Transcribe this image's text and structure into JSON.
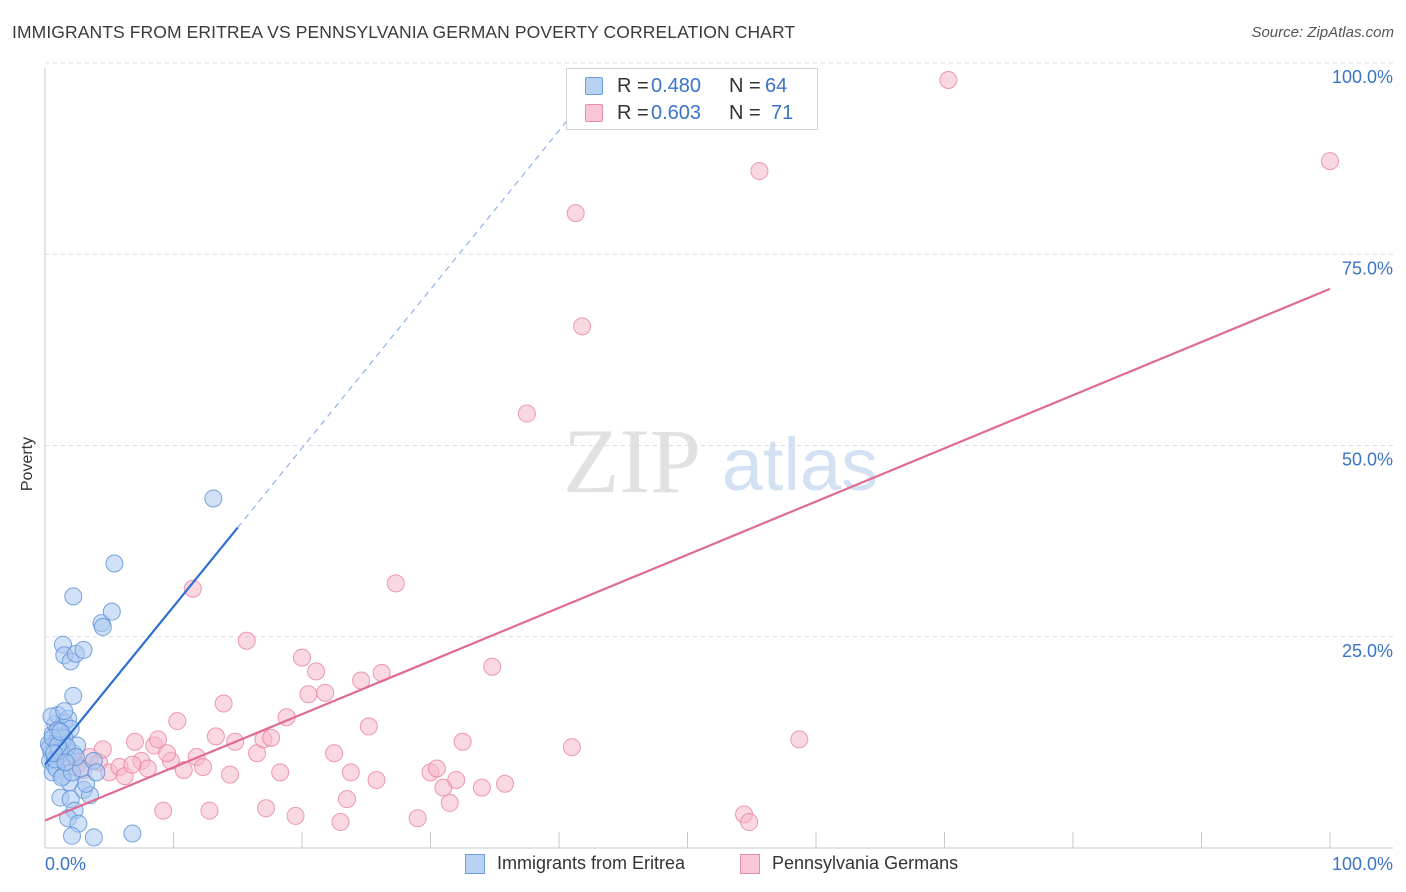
{
  "header": {
    "title": "IMMIGRANTS FROM ERITREA VS PENNSYLVANIA GERMAN POVERTY CORRELATION CHART",
    "source": "Source: ZipAtlas.com"
  },
  "watermark": {
    "zip": "ZIP",
    "atlas": "atlas"
  },
  "legend_top": {
    "r_label": "R =",
    "n_label": "N =",
    "rows": [
      {
        "r": "0.480",
        "n": "64"
      },
      {
        "r": "0.603",
        "n": "71"
      }
    ]
  },
  "colors": {
    "blue_fill": "#a9c8f0",
    "blue_stroke": "#5b8fd6",
    "blue_line": "#2e6fcf",
    "pink_fill": "#f6b8cb",
    "pink_stroke": "#e8829f",
    "pink_line": "#e06a93",
    "axis_text": "#3b73c8",
    "grid": "#d9dee5"
  },
  "chart_data": {
    "type": "scatter",
    "title": "IMMIGRANTS FROM ERITREA VS PENNSYLVANIA GERMAN POVERTY CORRELATION CHART",
    "xlabel": "",
    "ylabel": "Poverty",
    "xlim": [
      0,
      100
    ],
    "ylim": [
      0,
      100
    ],
    "x_tick_labels": [
      "0.0%",
      "100.0%"
    ],
    "y_ticks": [
      25,
      50,
      75,
      100
    ],
    "y_tick_labels": [
      "25.0%",
      "50.0%",
      "75.0%",
      "100.0%"
    ],
    "legend_position": "bottom-center",
    "series": [
      {
        "name": "Immigrants from Eritrea",
        "color": "blue",
        "r": 0.48,
        "n": 64,
        "trend": {
          "x0": 0,
          "y0": 10.5,
          "x1": 15,
          "y1": 41.5,
          "dashed_to": {
            "x": 41.5,
            "y": 96.5
          }
        },
        "points": [
          [
            0.3,
            13.2
          ],
          [
            0.5,
            12.1
          ],
          [
            0.6,
            14.5
          ],
          [
            0.4,
            11.0
          ],
          [
            0.8,
            15.8
          ],
          [
            1.0,
            17.0
          ],
          [
            0.9,
            13.5
          ],
          [
            1.2,
            12.5
          ],
          [
            0.7,
            10.5
          ],
          [
            1.1,
            11.8
          ],
          [
            1.5,
            16.0
          ],
          [
            1.3,
            14.2
          ],
          [
            0.6,
            9.5
          ],
          [
            1.8,
            16.5
          ],
          [
            2.0,
            15.2
          ],
          [
            1.6,
            13.0
          ],
          [
            0.4,
            12.8
          ],
          [
            0.9,
            10.0
          ],
          [
            1.4,
            9.0
          ],
          [
            1.7,
            11.5
          ],
          [
            2.2,
            12.0
          ],
          [
            2.5,
            13.0
          ],
          [
            1.9,
            8.2
          ],
          [
            1.3,
            8.8
          ],
          [
            2.1,
            9.5
          ],
          [
            0.5,
            16.8
          ],
          [
            1.0,
            15.0
          ],
          [
            1.5,
            14.0
          ],
          [
            1.2,
            6.2
          ],
          [
            2.0,
            6.0
          ],
          [
            2.3,
            4.5
          ],
          [
            1.8,
            3.5
          ],
          [
            2.6,
            2.8
          ],
          [
            2.1,
            1.2
          ],
          [
            3.0,
            7.2
          ],
          [
            3.5,
            6.5
          ],
          [
            3.2,
            8.0
          ],
          [
            2.8,
            10.0
          ],
          [
            3.8,
            11.0
          ],
          [
            4.0,
            9.5
          ],
          [
            1.4,
            26.2
          ],
          [
            1.5,
            24.8
          ],
          [
            2.0,
            24.0
          ],
          [
            2.4,
            25.0
          ],
          [
            3.0,
            25.5
          ],
          [
            4.4,
            29.0
          ],
          [
            4.5,
            28.5
          ],
          [
            5.2,
            30.5
          ],
          [
            5.4,
            36.8
          ],
          [
            2.2,
            32.5
          ],
          [
            2.2,
            19.5
          ],
          [
            1.5,
            17.5
          ],
          [
            0.8,
            11.2
          ],
          [
            1.1,
            12.3
          ],
          [
            0.6,
            14.0
          ],
          [
            1.7,
            12.8
          ],
          [
            2.4,
            11.5
          ],
          [
            3.8,
            1.0
          ],
          [
            6.8,
            1.5
          ],
          [
            13.1,
            45.3
          ],
          [
            1.0,
            13.0
          ],
          [
            0.7,
            12.0
          ],
          [
            1.2,
            14.8
          ],
          [
            1.6,
            10.8
          ]
        ]
      },
      {
        "name": "Pennsylvania Germans",
        "color": "pink",
        "r": 0.603,
        "n": 71,
        "trend": {
          "x0": 0,
          "y0": 3.2,
          "x1": 100,
          "y1": 72.7
        },
        "points": [
          [
            1.2,
            12.2
          ],
          [
            1.8,
            11.0
          ],
          [
            2.5,
            10.5
          ],
          [
            3.0,
            9.8
          ],
          [
            3.5,
            11.5
          ],
          [
            4.2,
            10.8
          ],
          [
            5.0,
            9.5
          ],
          [
            5.8,
            10.2
          ],
          [
            6.2,
            9.0
          ],
          [
            7.0,
            13.5
          ],
          [
            7.5,
            11.0
          ],
          [
            8.0,
            10.0
          ],
          [
            8.5,
            13.0
          ],
          [
            8.8,
            13.8
          ],
          [
            9.2,
            4.5
          ],
          [
            9.8,
            11.0
          ],
          [
            10.3,
            16.2
          ],
          [
            10.8,
            9.8
          ],
          [
            11.5,
            33.5
          ],
          [
            11.8,
            11.5
          ],
          [
            12.3,
            10.2
          ],
          [
            12.8,
            4.5
          ],
          [
            13.3,
            14.2
          ],
          [
            13.9,
            18.5
          ],
          [
            14.4,
            9.2
          ],
          [
            14.8,
            13.5
          ],
          [
            15.7,
            26.7
          ],
          [
            16.5,
            12.0
          ],
          [
            17.0,
            13.8
          ],
          [
            17.2,
            4.8
          ],
          [
            17.6,
            14.0
          ],
          [
            18.3,
            9.5
          ],
          [
            18.8,
            16.7
          ],
          [
            19.5,
            3.8
          ],
          [
            20.0,
            24.5
          ],
          [
            20.5,
            19.7
          ],
          [
            21.1,
            22.7
          ],
          [
            21.8,
            19.9
          ],
          [
            22.5,
            12.0
          ],
          [
            23.0,
            3.0
          ],
          [
            23.5,
            6.0
          ],
          [
            23.8,
            9.5
          ],
          [
            24.6,
            21.5
          ],
          [
            25.2,
            15.5
          ],
          [
            25.8,
            8.5
          ],
          [
            26.2,
            22.5
          ],
          [
            27.3,
            34.2
          ],
          [
            29.0,
            3.5
          ],
          [
            30.0,
            9.5
          ],
          [
            30.5,
            10.0
          ],
          [
            31.0,
            7.5
          ],
          [
            31.5,
            5.5
          ],
          [
            32.0,
            8.5
          ],
          [
            32.5,
            13.5
          ],
          [
            34.0,
            7.5
          ],
          [
            34.8,
            23.3
          ],
          [
            35.8,
            8.0
          ],
          [
            37.5,
            56.4
          ],
          [
            41.0,
            12.8
          ],
          [
            41.3,
            82.6
          ],
          [
            41.8,
            67.8
          ],
          [
            54.4,
            4.0
          ],
          [
            54.8,
            3.0
          ],
          [
            55.6,
            88.1
          ],
          [
            58.7,
            13.8
          ],
          [
            70.3,
            100.0
          ],
          [
            100.0,
            89.4
          ],
          [
            2.0,
            11.8
          ],
          [
            4.5,
            12.5
          ],
          [
            6.8,
            10.5
          ],
          [
            9.5,
            12.0
          ]
        ]
      }
    ]
  }
}
